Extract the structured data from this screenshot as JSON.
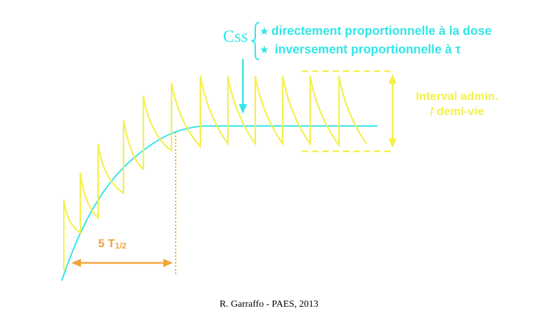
{
  "css_label": "Css",
  "css_items": [
    {
      "bullet": "★",
      "text": "directement proportionnelle à la dose"
    },
    {
      "bullet": "★",
      "text": " inversement proportionnelle à τ"
    }
  ],
  "interval_label": {
    "line1": "Interval admin.",
    "line2": "/ demi-vie"
  },
  "half_life_label": {
    "number": "5 T",
    "subscript": "1/2"
  },
  "credit": "R. Garraffo - PAES, 2013",
  "colors": {
    "cyan": "#33e6e6",
    "yellow": "#f4f049",
    "orange": "#f3a33a",
    "background": "#ffffff",
    "text": "#000000"
  }
}
